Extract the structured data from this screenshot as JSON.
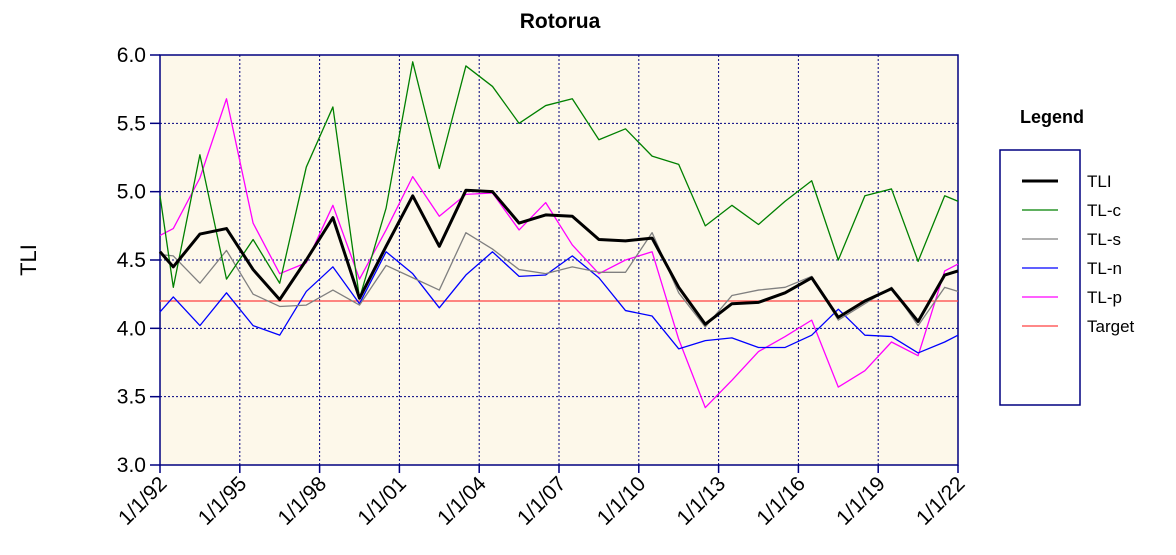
{
  "chart_data": {
    "type": "line",
    "title": "Rotorua",
    "ylabel": "TLI",
    "legend_title": "Legend",
    "legend": "right",
    "grid": true,
    "x": [
      1992,
      1992.5,
      1993.5,
      1994.5,
      1995.5,
      1996.5,
      1997.5,
      1998.5,
      1999.5,
      2000.5,
      2001.5,
      2002.5,
      2003.5,
      2004.5,
      2005.5,
      2006.5,
      2007.5,
      2008.5,
      2009.5,
      2010.5,
      2011.5,
      2012.5,
      2013.5,
      2014.5,
      2015.5,
      2016.5,
      2017.5,
      2018.5,
      2019.5,
      2020.5,
      2021.5,
      2022
    ],
    "xlim": [
      1992,
      2022
    ],
    "xticks": [
      {
        "value": 1992,
        "label": "1/1/92"
      },
      {
        "value": 1995,
        "label": "1/1/95"
      },
      {
        "value": 1998,
        "label": "1/1/98"
      },
      {
        "value": 2001,
        "label": "1/1/01"
      },
      {
        "value": 2004,
        "label": "1/1/04"
      },
      {
        "value": 2007,
        "label": "1/1/07"
      },
      {
        "value": 2010,
        "label": "1/1/10"
      },
      {
        "value": 2013,
        "label": "1/1/13"
      },
      {
        "value": 2016,
        "label": "1/1/16"
      },
      {
        "value": 2019,
        "label": "1/1/19"
      },
      {
        "value": 2022,
        "label": "1/1/22"
      }
    ],
    "ylim": [
      3,
      6
    ],
    "yticks": [
      {
        "value": 3,
        "label": "3.0"
      },
      3.5,
      {
        "value": 4,
        "label": "4.0"
      },
      4.5,
      {
        "value": 5,
        "label": "5.0"
      },
      5.5,
      {
        "value": 6,
        "label": "6.0"
      }
    ],
    "series": [
      {
        "name": "TLI",
        "color": "#000000",
        "width": 3,
        "values": [
          4.56,
          4.45,
          4.69,
          4.73,
          4.43,
          4.21,
          4.5,
          4.81,
          4.22,
          4.6,
          4.97,
          4.6,
          5.01,
          5.0,
          4.77,
          4.83,
          4.82,
          4.65,
          4.64,
          4.66,
          4.3,
          4.03,
          4.18,
          4.19,
          4.26,
          4.37,
          4.08,
          4.2,
          4.29,
          4.05,
          4.39,
          4.42
        ]
      },
      {
        "name": "TL-c",
        "color": "#008000",
        "width": 1.3,
        "values": [
          4.97,
          4.3,
          5.27,
          4.36,
          4.65,
          4.33,
          5.18,
          5.62,
          4.22,
          4.88,
          5.95,
          5.17,
          5.92,
          5.77,
          5.5,
          5.63,
          5.68,
          5.38,
          5.46,
          5.26,
          5.2,
          4.75,
          4.9,
          4.76,
          4.93,
          5.08,
          4.5,
          4.97,
          5.02,
          4.49,
          4.97,
          4.93
        ]
      },
      {
        "name": "TL-s",
        "color": "#808080",
        "width": 1.3,
        "values": [
          4.54,
          4.53,
          4.33,
          4.57,
          4.25,
          4.16,
          4.17,
          4.28,
          4.17,
          4.46,
          4.37,
          4.28,
          4.7,
          4.58,
          4.43,
          4.4,
          4.45,
          4.41,
          4.41,
          4.7,
          4.26,
          4.01,
          4.24,
          4.28,
          4.3,
          4.38,
          4.06,
          4.18,
          4.3,
          4.02,
          4.3,
          4.27
        ]
      },
      {
        "name": "TL-n",
        "color": "#0000ff",
        "width": 1.3,
        "values": [
          4.12,
          4.23,
          4.02,
          4.26,
          4.02,
          3.95,
          4.27,
          4.45,
          4.18,
          4.56,
          4.4,
          4.15,
          4.39,
          4.56,
          4.38,
          4.39,
          4.53,
          4.37,
          4.13,
          4.09,
          3.85,
          3.91,
          3.93,
          3.86,
          3.86,
          3.95,
          4.14,
          3.95,
          3.94,
          3.82,
          3.9,
          3.95
        ]
      },
      {
        "name": "TL-p",
        "color": "#ff00ff",
        "width": 1.3,
        "values": [
          4.68,
          4.73,
          5.1,
          5.68,
          4.77,
          4.4,
          4.48,
          4.9,
          4.36,
          4.72,
          5.11,
          4.82,
          4.98,
          4.99,
          4.72,
          4.92,
          4.61,
          4.4,
          4.5,
          4.56,
          3.92,
          3.42,
          3.62,
          3.83,
          3.94,
          4.06,
          3.57,
          3.69,
          3.9,
          3.8,
          4.42,
          4.47
        ]
      },
      {
        "name": "Target",
        "color": "#ff4040",
        "width": 1.3,
        "values": [
          4.2,
          4.2,
          4.2,
          4.2,
          4.2,
          4.2,
          4.2,
          4.2,
          4.2,
          4.2,
          4.2,
          4.2,
          4.2,
          4.2,
          4.2,
          4.2,
          4.2,
          4.2,
          4.2,
          4.2,
          4.2,
          4.2,
          4.2,
          4.2,
          4.2,
          4.2,
          4.2,
          4.2,
          4.2,
          4.2,
          4.2,
          4.2
        ]
      }
    ]
  }
}
